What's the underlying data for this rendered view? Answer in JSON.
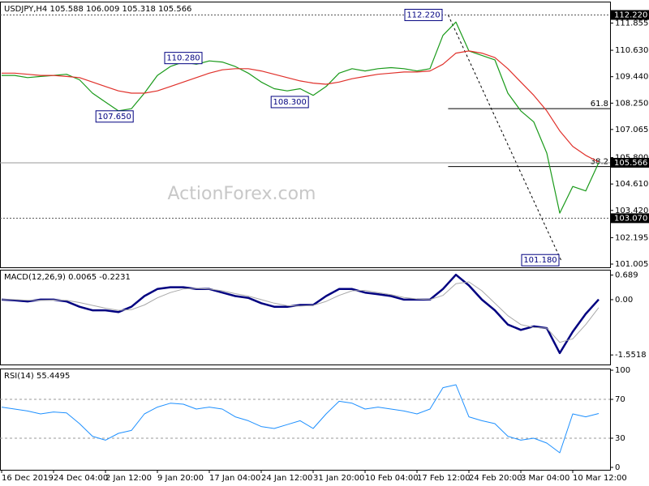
{
  "chart_data": [
    {
      "type": "line",
      "title": "USDJPY,H4 105.588 106.009 105.318 105.566",
      "watermark": "ActionForex.com",
      "xlim": [
        -0.125,
        46.875
      ],
      "ylim": [
        100.86,
        112.82
      ],
      "yticks": [
        111.855,
        {
          "value": 110.63,
          "label": "110.630"
        },
        {
          "value": 109.44,
          "label": "109.440"
        },
        {
          "value": 108.25,
          "label": "108.250"
        },
        107.065,
        {
          "value": 105.8,
          "label": "105.800"
        },
        {
          "value": 104.61,
          "label": "104.610"
        },
        {
          "value": 103.42,
          "label": "103.420"
        },
        102.195,
        101.005
      ],
      "series": [
        {
          "name": "Price",
          "color": "#1a9a1a",
          "values": [
            109.5,
            109.5,
            109.4,
            109.45,
            109.5,
            109.55,
            109.3,
            108.7,
            108.3,
            107.9,
            108.0,
            108.7,
            109.5,
            109.9,
            110.1,
            110.0,
            110.15,
            110.1,
            109.9,
            109.6,
            109.2,
            108.9,
            108.8,
            108.9,
            108.6,
            109.0,
            109.6,
            109.8,
            109.7,
            109.8,
            109.85,
            109.8,
            109.7,
            109.8,
            111.3,
            111.9,
            110.6,
            110.4,
            110.2,
            108.7,
            107.9,
            107.4,
            106.0,
            103.3,
            104.5,
            104.3,
            105.566
          ]
        },
        {
          "name": "MA",
          "color": "#e0302a",
          "values": [
            109.6,
            109.6,
            109.55,
            109.5,
            109.5,
            109.45,
            109.4,
            109.2,
            109.0,
            108.8,
            108.7,
            108.7,
            108.8,
            109.0,
            109.2,
            109.4,
            109.6,
            109.75,
            109.8,
            109.8,
            109.7,
            109.55,
            109.4,
            109.25,
            109.15,
            109.1,
            109.2,
            109.35,
            109.45,
            109.55,
            109.6,
            109.65,
            109.65,
            109.7,
            110.0,
            110.5,
            110.6,
            110.5,
            110.3,
            109.8,
            109.2,
            108.6,
            107.9,
            107.0,
            106.3,
            105.9,
            105.6
          ]
        }
      ],
      "levels": [
        {
          "value": 112.22,
          "label": "112.220",
          "style": "dotted"
        },
        {
          "value": 105.566,
          "label": "105.566",
          "style": "solid"
        },
        {
          "value": 103.07,
          "label": "103.070",
          "style": "dotted"
        }
      ],
      "annotations": [
        {
          "label": "112.220",
          "value": 112.22,
          "x": 32.5
        },
        {
          "label": "110.280",
          "value": 110.28,
          "x": 14
        },
        {
          "label": "108.300",
          "value": 108.3,
          "x": 22.2
        },
        {
          "label": "107.650",
          "value": 107.65,
          "x": 8.7
        },
        {
          "label": "101.180",
          "value": 101.18,
          "x": 41.5
        }
      ],
      "fibonacci": {
        "x": [
          34.4,
          43.1
        ],
        "y": [
          112.22,
          101.18
        ],
        "levels": [
          61.8,
          38.2
        ]
      }
    },
    {
      "type": "line",
      "title": "MACD(12,26,9) 0.0065 -0.2231",
      "ylim": [
        -1.82,
        0.84
      ],
      "yticks": [
        0.689,
        {
          "value": 0,
          "label": "0.00"
        },
        -1.5518
      ],
      "series": [
        {
          "name": "MACD",
          "color": "#000080",
          "width": 2.5,
          "values": [
            0.0,
            -0.02,
            -0.05,
            0.0,
            0.0,
            -0.05,
            -0.2,
            -0.3,
            -0.3,
            -0.35,
            -0.2,
            0.1,
            0.3,
            0.35,
            0.35,
            0.3,
            0.3,
            0.2,
            0.1,
            0.05,
            -0.1,
            -0.2,
            -0.2,
            -0.15,
            -0.15,
            0.1,
            0.3,
            0.3,
            0.2,
            0.15,
            0.1,
            0.0,
            0.0,
            0.0,
            0.3,
            0.7,
            0.4,
            0.0,
            -0.3,
            -0.7,
            -0.85,
            -0.75,
            -0.8,
            -1.5,
            -0.9,
            -0.4,
            0.0065
          ]
        },
        {
          "name": "Signal",
          "color": "#a8a8a8",
          "width": 1,
          "values": [
            0.0,
            0.0,
            -0.02,
            -0.02,
            -0.01,
            -0.02,
            -0.08,
            -0.16,
            -0.24,
            -0.3,
            -0.28,
            -0.15,
            0.05,
            0.2,
            0.3,
            0.32,
            0.3,
            0.25,
            0.17,
            0.1,
            0.0,
            -0.1,
            -0.17,
            -0.18,
            -0.16,
            -0.05,
            0.12,
            0.25,
            0.26,
            0.2,
            0.14,
            0.06,
            0.02,
            0.0,
            0.12,
            0.45,
            0.5,
            0.25,
            -0.1,
            -0.45,
            -0.7,
            -0.78,
            -0.8,
            -1.2,
            -1.1,
            -0.7,
            -0.2231
          ]
        }
      ]
    },
    {
      "type": "line",
      "title": "RSI(14) 55.4495",
      "ylim": [
        -2.5,
        101.7
      ],
      "yticks": [
        0,
        30,
        70,
        100
      ],
      "dashed_levels": [
        30,
        70
      ],
      "series": [
        {
          "name": "RSI",
          "color": "#1e90ff",
          "width": 1,
          "values": [
            62,
            60,
            58,
            55,
            57,
            56,
            45,
            32,
            28,
            35,
            38,
            55,
            62,
            66,
            65,
            60,
            62,
            60,
            52,
            48,
            42,
            40,
            44,
            48,
            40,
            55,
            68,
            66,
            60,
            62,
            60,
            58,
            55,
            60,
            82,
            85,
            52,
            48,
            45,
            32,
            28,
            30,
            25,
            15,
            55,
            52,
            55.4495
          ]
        }
      ],
      "xticks": [
        {
          "value": 0,
          "label": "16 Dec 2019"
        },
        {
          "value": 4,
          "label": "24 Dec 04:00"
        },
        {
          "value": 8,
          "label": "2 Jan 12:00"
        },
        {
          "value": 12,
          "label": "9 Jan 20:00"
        },
        {
          "value": 16,
          "label": "17 Jan 04:00"
        },
        {
          "value": 20,
          "label": "24 Jan 12:00"
        },
        {
          "value": 24,
          "label": "31 Jan 20:00"
        },
        {
          "value": 28,
          "label": "10 Feb 04:00"
        },
        {
          "value": 32,
          "label": "17 Feb 12:00"
        },
        {
          "value": 36,
          "label": "24 Feb 20:00"
        },
        {
          "value": 40,
          "label": "3 Mar 04:00"
        },
        {
          "value": 44,
          "label": "10 Mar 12:00"
        }
      ]
    }
  ]
}
